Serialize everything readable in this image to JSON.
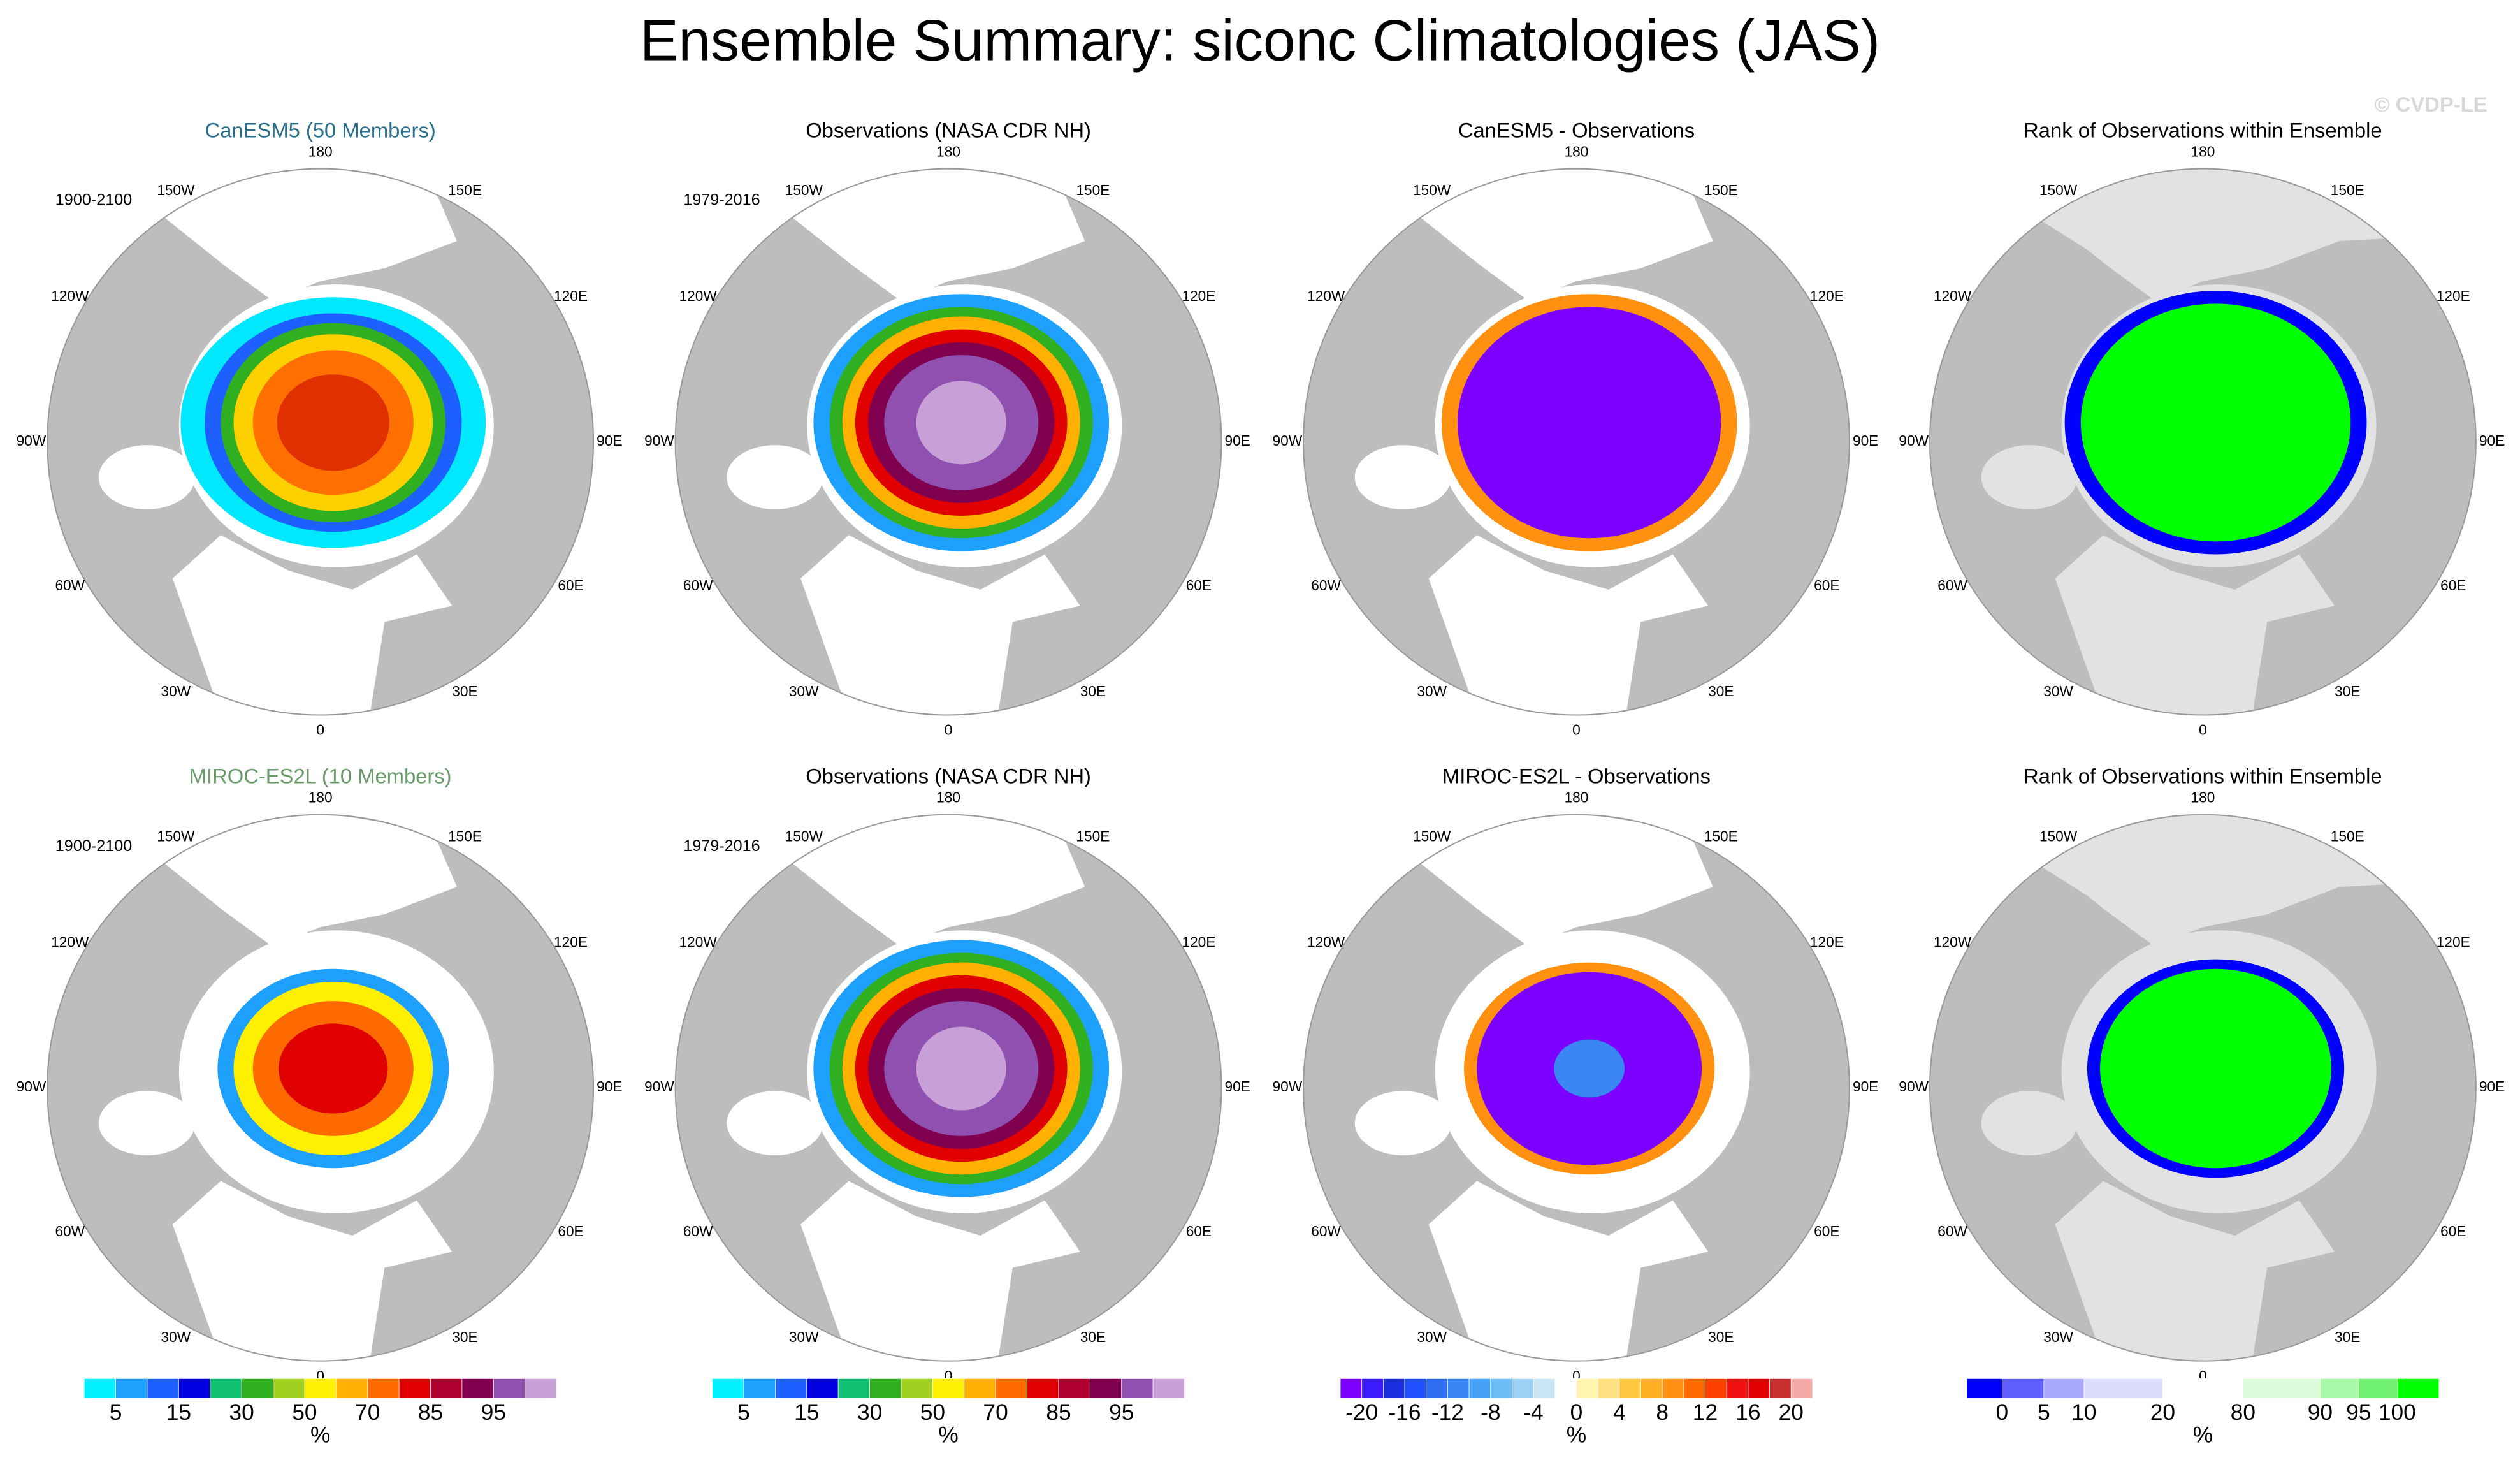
{
  "title": "Ensemble Summary: siconc Climatologies (JAS)",
  "watermark": "© CVDP-LE",
  "longitude_labels": [
    "0",
    "30E",
    "60E",
    "90E",
    "120E",
    "150E",
    "180",
    "150W",
    "120W",
    "90W",
    "60W",
    "30W"
  ],
  "panels": [
    {
      "title": "CanESM5 (50 Members)",
      "title_color": "#2a6f8a",
      "period": "1900-2100"
    },
    {
      "title": "Observations (NASA CDR NH)",
      "title_color": "#000000",
      "period": "1979-2016"
    },
    {
      "title": "CanESM5 - Observations",
      "title_color": "#000000"
    },
    {
      "title": "Rank of Observations within Ensemble",
      "title_color": "#000000"
    },
    {
      "title": "MIROC-ES2L (10 Members)",
      "title_color": "#6a9a6a",
      "period": "1900-2100"
    },
    {
      "title": "Observations (NASA CDR NH)",
      "title_color": "#000000",
      "period": "1979-2016"
    },
    {
      "title": "MIROC-ES2L - Observations",
      "title_color": "#000000"
    },
    {
      "title": "Rank of Observations within Ensemble",
      "title_color": "#000000"
    }
  ],
  "colorbars": [
    {
      "colors": [
        "#00f0ff",
        "#1ea0ff",
        "#1e60ff",
        "#0000e0",
        "#10c070",
        "#30b020",
        "#a0d020",
        "#ffef00",
        "#ffb000",
        "#ff6a00",
        "#e00000",
        "#b00030",
        "#800050",
        "#9050b0",
        "#c8a0d8"
      ],
      "ticks": [
        5,
        15,
        30,
        50,
        70,
        85,
        95
      ],
      "unit": "%"
    },
    {
      "colors": [
        "#00f0ff",
        "#1ea0ff",
        "#1e60ff",
        "#0000e0",
        "#10c070",
        "#30b020",
        "#a0d020",
        "#ffef00",
        "#ffb000",
        "#ff6a00",
        "#e00000",
        "#b00030",
        "#800050",
        "#9050b0",
        "#c8a0d8"
      ],
      "ticks": [
        5,
        15,
        30,
        50,
        70,
        85,
        95
      ],
      "unit": "%"
    },
    {
      "colors": [
        "#7b00ff",
        "#3c1cff",
        "#1a2ee0",
        "#1f4fff",
        "#2e6cf0",
        "#3a86f5",
        "#46a2f8",
        "#6cbcf8",
        "#9cd0f5",
        "#c8e4f5",
        "#ffffff",
        "#fff5b0",
        "#ffe080",
        "#ffc840",
        "#ffb020",
        "#ff9010",
        "#ff6a00",
        "#ff4000",
        "#f01010",
        "#e00000",
        "#c83030",
        "#f4a8a8"
      ],
      "ticks": [
        -20,
        -16,
        -12,
        -8,
        -4,
        0,
        4,
        8,
        12,
        16,
        20
      ],
      "unit": "%"
    },
    {
      "colors": [
        "#0000ff",
        "#6060ff",
        "#a8a8ff",
        "#dcdcfc",
        "#ffffff",
        "#dcfcdc",
        "#a8f8a8",
        "#70f070",
        "#00ff00"
      ],
      "ticks": [
        0,
        5,
        10,
        20,
        80,
        90,
        95,
        100
      ],
      "unit": "%"
    }
  ]
}
